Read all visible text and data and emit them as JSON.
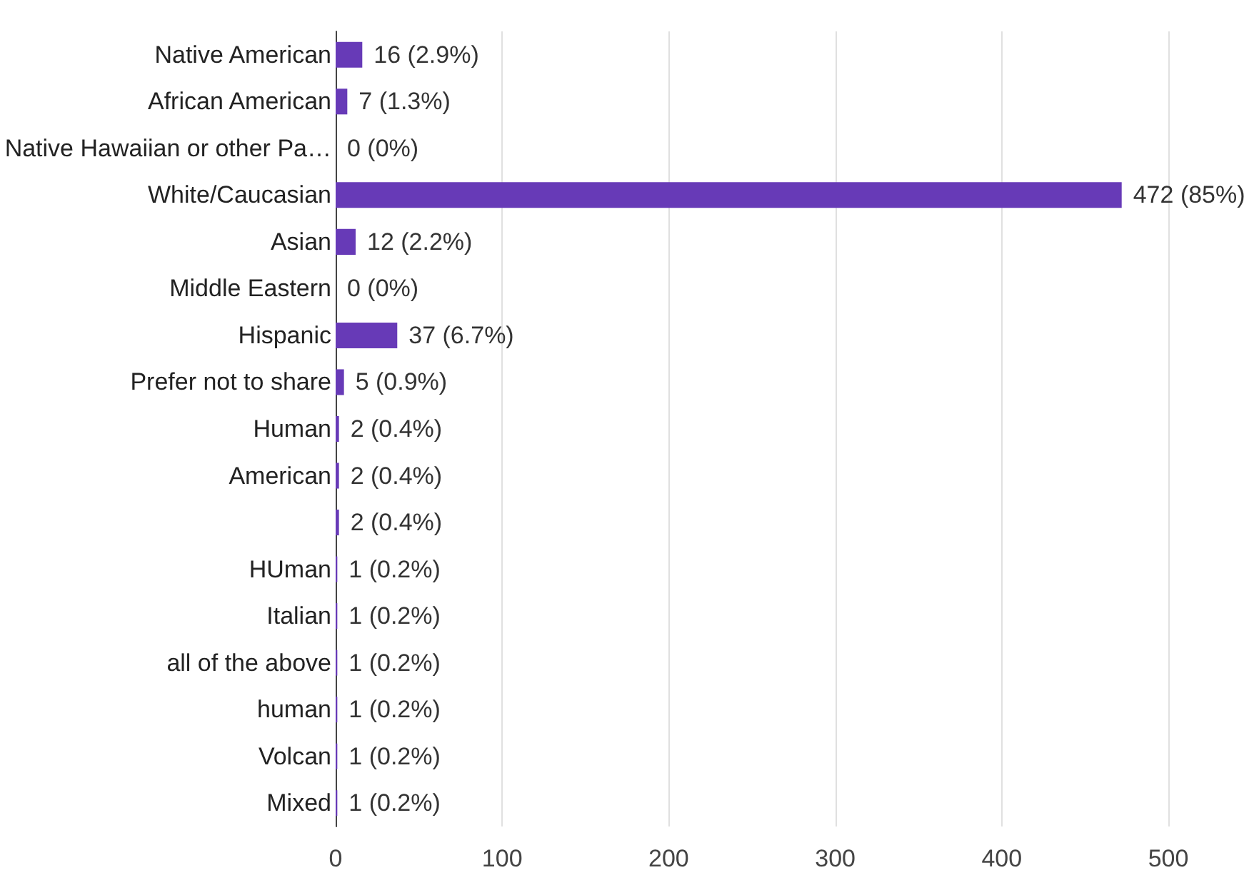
{
  "chart_data": {
    "type": "bar",
    "orientation": "horizontal",
    "categories": [
      "Native American",
      "African American",
      "Native Hawaiian or other Pa…",
      "White/Caucasian",
      "Asian",
      "Middle Eastern",
      "Hispanic",
      "Prefer not to share",
      "Human",
      "American",
      null,
      "HUman",
      "Italian",
      "all of the above",
      "human",
      "Volcan",
      "Mixed"
    ],
    "values": [
      16,
      7,
      0,
      472,
      12,
      0,
      37,
      5,
      2,
      2,
      2,
      1,
      1,
      1,
      1,
      1,
      1
    ],
    "value_labels": [
      "16 (2.9%)",
      "7 (1.3%)",
      "0 (0%)",
      "472 (85%)",
      "12 (2.2%)",
      "0 (0%)",
      "37 (6.7%)",
      "5 (0.9%)",
      "2 (0.4%)",
      "2 (0.4%)",
      "2 (0.4%)",
      "1 (0.2%)",
      "1 (0.2%)",
      "1 (0.2%)",
      "1 (0.2%)",
      "1 (0.2%)",
      "1 (0.2%)"
    ],
    "color": "#673ab7",
    "xlim": [
      0,
      500
    ],
    "xticks": [
      0,
      100,
      200,
      300,
      400,
      500
    ],
    "grid": "x"
  }
}
